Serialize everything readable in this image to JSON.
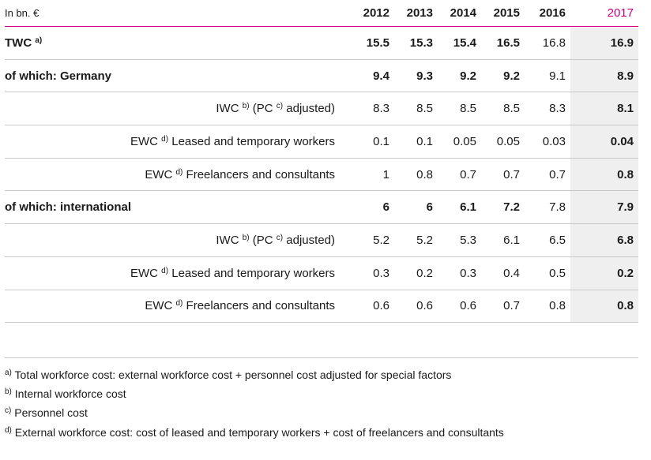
{
  "header": {
    "unit": "In bn. €",
    "years": [
      "2012",
      "2013",
      "2014",
      "2015",
      "2016",
      "2017"
    ]
  },
  "rows": [
    {
      "label": "TWC",
      "sup": "a)",
      "main": true,
      "values": [
        "15.5",
        "15.3",
        "15.4",
        "16.5",
        "16.8",
        "16.9"
      ]
    },
    {
      "label": "of which: Germany",
      "sup": "",
      "main": true,
      "values": [
        "9.4",
        "9.3",
        "9.2",
        "9.2",
        "9.1",
        "8.9"
      ]
    },
    {
      "label_parts": [
        "IWC ",
        "b)",
        " (PC ",
        "c)",
        " adjusted)"
      ],
      "main": false,
      "values": [
        "8.3",
        "8.5",
        "8.5",
        "8.5",
        "8.3",
        "8.1"
      ]
    },
    {
      "label_parts": [
        "EWC ",
        "d)",
        " Leased and temporary workers"
      ],
      "main": false,
      "values": [
        "0.1",
        "0.1",
        "0.05",
        "0.05",
        "0.03",
        "0.04"
      ]
    },
    {
      "label_parts": [
        "EWC ",
        "d)",
        " Freelancers and consultants"
      ],
      "main": false,
      "values": [
        "1",
        "0.8",
        "0.7",
        "0.7",
        "0.7",
        "0.8"
      ]
    },
    {
      "label": "of which: international",
      "sup": "",
      "main": true,
      "values": [
        "6",
        "6",
        "6.1",
        "7.2",
        "7.8",
        "7.9"
      ]
    },
    {
      "label_parts": [
        "IWC ",
        "b)",
        " (PC ",
        "c)",
        " adjusted)"
      ],
      "main": false,
      "values": [
        "5.2",
        "5.2",
        "5.3",
        "6.1",
        "6.5",
        "6.8"
      ]
    },
    {
      "label_parts": [
        "EWC ",
        "d)",
        " Leased and temporary workers"
      ],
      "main": false,
      "values": [
        "0.3",
        "0.2",
        "0.3",
        "0.4",
        "0.5",
        "0.2"
      ]
    },
    {
      "label_parts": [
        "EWC ",
        "d)",
        " Freelancers and consultants"
      ],
      "main": false,
      "values": [
        "0.6",
        "0.6",
        "0.6",
        "0.7",
        "0.8",
        "0.8"
      ]
    }
  ],
  "footnotes": [
    {
      "mark": "a)",
      "text": " Total workforce cost: external workforce cost + personnel cost adjusted for special factors"
    },
    {
      "mark": "b)",
      "text": " Internal workforce cost"
    },
    {
      "mark": "c)",
      "text": " Personnel cost"
    },
    {
      "mark": "d)",
      "text": " External workforce cost: cost of leased and temporary workers + cost of freelancers and consultants"
    }
  ]
}
